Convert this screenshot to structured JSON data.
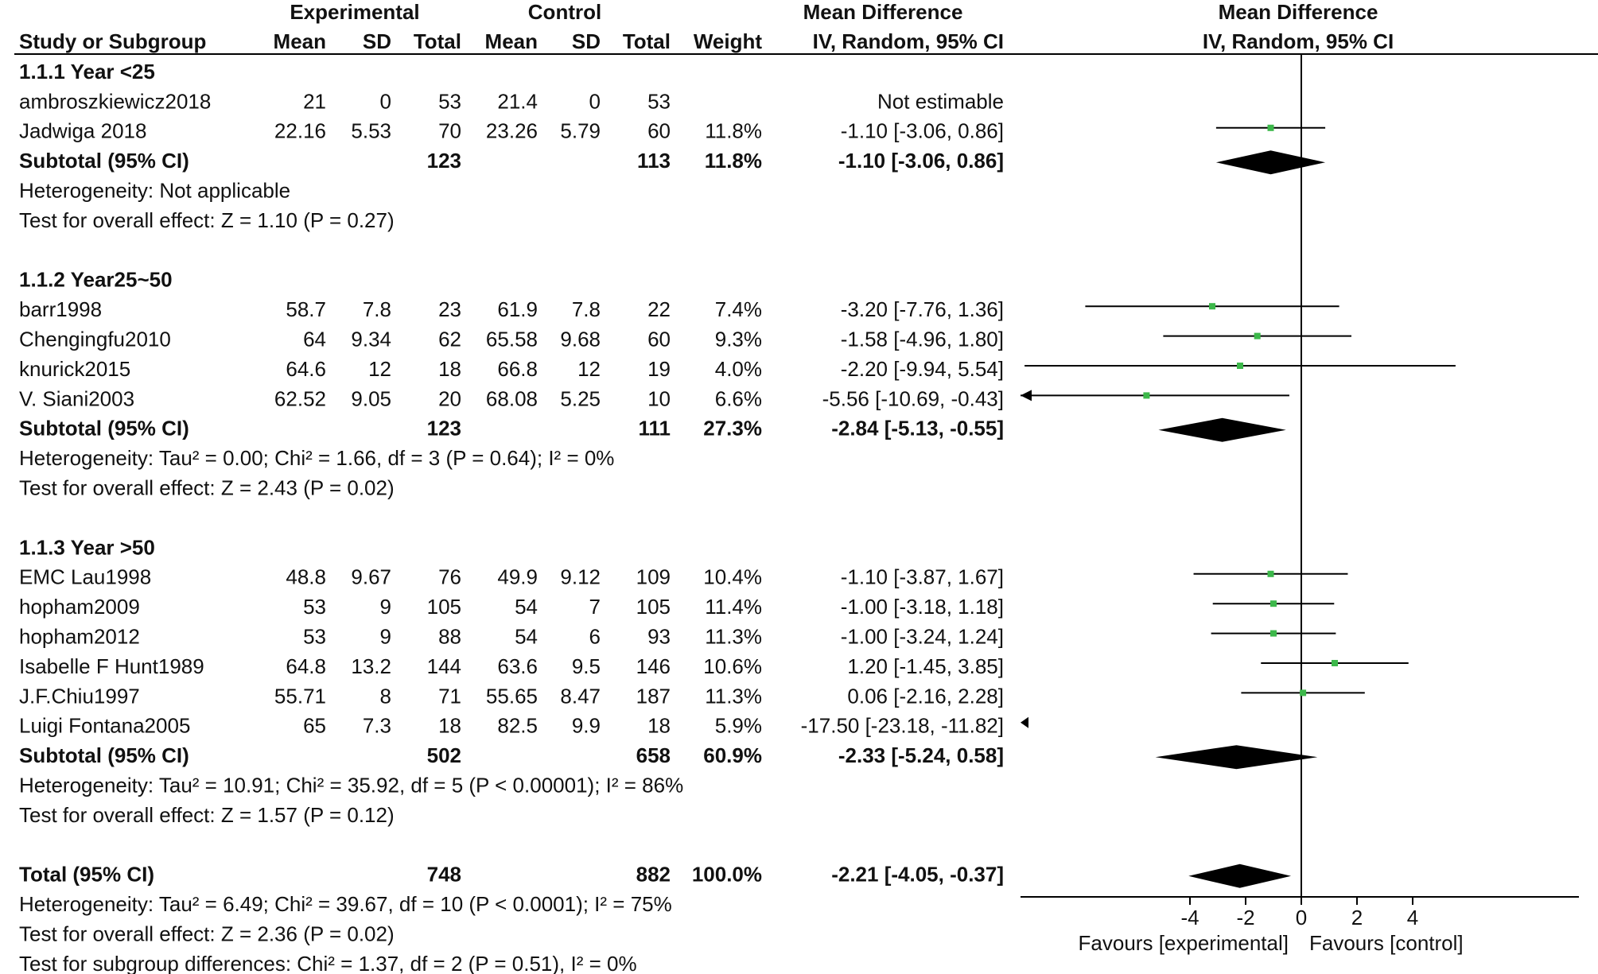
{
  "chart_data": {
    "type": "forest",
    "title": "",
    "header": {
      "group_experimental": "Experimental",
      "group_control": "Control",
      "group_md_text": "Mean Difference",
      "group_md_plot": "Mean Difference",
      "col_study": "Study or Subgroup",
      "col_exp_mean": "Mean",
      "col_exp_sd": "SD",
      "col_exp_total": "Total",
      "col_ctl_mean": "Mean",
      "col_ctl_sd": "SD",
      "col_ctl_total": "Total",
      "col_weight": "Weight",
      "col_ci": "IV, Random, 95% CI",
      "plot_method": "IV, Random, 95% CI"
    },
    "rows": [
      {
        "kind": "heading",
        "label": "1.1.1 Year <25"
      },
      {
        "kind": "study",
        "label": "ambroszkiewicz2018",
        "e_mean": "21",
        "e_sd": "0",
        "e_n": "53",
        "c_mean": "21.4",
        "c_sd": "0",
        "c_n": "53",
        "weight": "",
        "ci_text": "Not estimable",
        "md": null,
        "lo": null,
        "hi": null
      },
      {
        "kind": "study",
        "label": "Jadwiga 2018",
        "e_mean": "22.16",
        "e_sd": "5.53",
        "e_n": "70",
        "c_mean": "23.26",
        "c_sd": "5.79",
        "c_n": "60",
        "weight": "11.8%",
        "ci_text": "-1.10 [-3.06, 0.86]",
        "md": -1.1,
        "lo": -3.06,
        "hi": 0.86
      },
      {
        "kind": "subtotal",
        "label": "Subtotal (95% CI)",
        "e_n": "123",
        "c_n": "113",
        "weight": "11.8%",
        "ci_text": "-1.10 [-3.06, 0.86]",
        "md": -1.1,
        "lo": -3.06,
        "hi": 0.86
      },
      {
        "kind": "text",
        "label": "Heterogeneity: Not applicable"
      },
      {
        "kind": "text",
        "label": "Test for overall effect: Z = 1.10 (P = 0.27)"
      },
      {
        "kind": "blank"
      },
      {
        "kind": "heading",
        "label": "1.1.2 Year25~50"
      },
      {
        "kind": "study",
        "label": "barr1998",
        "e_mean": "58.7",
        "e_sd": "7.8",
        "e_n": "23",
        "c_mean": "61.9",
        "c_sd": "7.8",
        "c_n": "22",
        "weight": "7.4%",
        "ci_text": "-3.20 [-7.76, 1.36]",
        "md": -3.2,
        "lo": -7.76,
        "hi": 1.36
      },
      {
        "kind": "study",
        "label": "Chengingfu2010",
        "e_mean": "64",
        "e_sd": "9.34",
        "e_n": "62",
        "c_mean": "65.58",
        "c_sd": "9.68",
        "c_n": "60",
        "weight": "9.3%",
        "ci_text": "-1.58 [-4.96, 1.80]",
        "md": -1.58,
        "lo": -4.96,
        "hi": 1.8
      },
      {
        "kind": "study",
        "label": "knurick2015",
        "e_mean": "64.6",
        "e_sd": "12",
        "e_n": "18",
        "c_mean": "66.8",
        "c_sd": "12",
        "c_n": "19",
        "weight": "4.0%",
        "ci_text": "-2.20 [-9.94, 5.54]",
        "md": -2.2,
        "lo": -9.94,
        "hi": 5.54
      },
      {
        "kind": "study",
        "label": "V. Siani2003",
        "e_mean": "62.52",
        "e_sd": "9.05",
        "e_n": "20",
        "c_mean": "68.08",
        "c_sd": "5.25",
        "c_n": "10",
        "weight": "6.6%",
        "ci_text": "-5.56 [-10.69, -0.43]",
        "md": -5.56,
        "lo": -10.69,
        "hi": -0.43
      },
      {
        "kind": "subtotal",
        "label": "Subtotal (95% CI)",
        "e_n": "123",
        "c_n": "111",
        "weight": "27.3%",
        "ci_text": "-2.84 [-5.13, -0.55]",
        "md": -2.84,
        "lo": -5.13,
        "hi": -0.55
      },
      {
        "kind": "text",
        "label": "Heterogeneity: Tau² = 0.00; Chi² = 1.66, df = 3 (P = 0.64); I² = 0%"
      },
      {
        "kind": "text",
        "label": "Test for overall effect: Z = 2.43 (P = 0.02)"
      },
      {
        "kind": "blank"
      },
      {
        "kind": "heading",
        "label": "1.1.3 Year >50"
      },
      {
        "kind": "study",
        "label": "EMC Lau1998",
        "e_mean": "48.8",
        "e_sd": "9.67",
        "e_n": "76",
        "c_mean": "49.9",
        "c_sd": "9.12",
        "c_n": "109",
        "weight": "10.4%",
        "ci_text": "-1.10 [-3.87, 1.67]",
        "md": -1.1,
        "lo": -3.87,
        "hi": 1.67
      },
      {
        "kind": "study",
        "label": "hopham2009",
        "e_mean": "53",
        "e_sd": "9",
        "e_n": "105",
        "c_mean": "54",
        "c_sd": "7",
        "c_n": "105",
        "weight": "11.4%",
        "ci_text": "-1.00 [-3.18, 1.18]",
        "md": -1.0,
        "lo": -3.18,
        "hi": 1.18
      },
      {
        "kind": "study",
        "label": "hopham2012",
        "e_mean": "53",
        "e_sd": "9",
        "e_n": "88",
        "c_mean": "54",
        "c_sd": "6",
        "c_n": "93",
        "weight": "11.3%",
        "ci_text": "-1.00 [-3.24, 1.24]",
        "md": -1.0,
        "lo": -3.24,
        "hi": 1.24
      },
      {
        "kind": "study",
        "label": "Isabelle F Hunt1989",
        "e_mean": "64.8",
        "e_sd": "13.2",
        "e_n": "144",
        "c_mean": "63.6",
        "c_sd": "9.5",
        "c_n": "146",
        "weight": "10.6%",
        "ci_text": "1.20 [-1.45, 3.85]",
        "md": 1.2,
        "lo": -1.45,
        "hi": 3.85
      },
      {
        "kind": "study",
        "label": "J.F.Chiu1997",
        "e_mean": "55.71",
        "e_sd": "8",
        "e_n": "71",
        "c_mean": "55.65",
        "c_sd": "8.47",
        "c_n": "187",
        "weight": "11.3%",
        "ci_text": "0.06 [-2.16, 2.28]",
        "md": 0.06,
        "lo": -2.16,
        "hi": 2.28
      },
      {
        "kind": "study",
        "label": "Luigi Fontana2005",
        "e_mean": "65",
        "e_sd": "7.3",
        "e_n": "18",
        "c_mean": "82.5",
        "c_sd": "9.9",
        "c_n": "18",
        "weight": "5.9%",
        "ci_text": "-17.50 [-23.18, -11.82]",
        "md": -17.5,
        "lo": -23.18,
        "hi": -11.82
      },
      {
        "kind": "subtotal",
        "label": "Subtotal (95% CI)",
        "e_n": "502",
        "c_n": "658",
        "weight": "60.9%",
        "ci_text": "-2.33 [-5.24, 0.58]",
        "md": -2.33,
        "lo": -5.24,
        "hi": 0.58
      },
      {
        "kind": "text",
        "label": "Heterogeneity: Tau² = 10.91; Chi² = 35.92, df = 5 (P < 0.00001); I² = 86%"
      },
      {
        "kind": "text",
        "label": "Test for overall effect: Z = 1.57 (P = 0.12)"
      },
      {
        "kind": "blank"
      },
      {
        "kind": "total",
        "label": "Total (95% CI)",
        "e_n": "748",
        "c_n": "882",
        "weight": "100.0%",
        "ci_text": "-2.21 [-4.05, -0.37]",
        "md": -2.21,
        "lo": -4.05,
        "hi": -0.37
      },
      {
        "kind": "text",
        "label": "Heterogeneity: Tau² = 6.49; Chi² = 39.67, df = 10 (P < 0.0001); I² = 75%"
      },
      {
        "kind": "text",
        "label": "Test for overall effect: Z = 2.36 (P = 0.02)"
      },
      {
        "kind": "text",
        "label": "Test for subgroup differences: Chi² = 1.37, df = 2 (P = 0.51), I² = 0%"
      }
    ],
    "xaxis": {
      "range": [
        -10,
        10
      ],
      "ticks": [
        -4,
        -2,
        0,
        2,
        4
      ],
      "tick_labels": [
        "-4",
        "-2",
        "0",
        "2",
        "4"
      ],
      "label_left": "Favours [experimental]",
      "label_right": "Favours [control]"
    },
    "colors": {
      "point": "#3cb84a",
      "diamond": "#000000",
      "line": "#000000"
    }
  }
}
